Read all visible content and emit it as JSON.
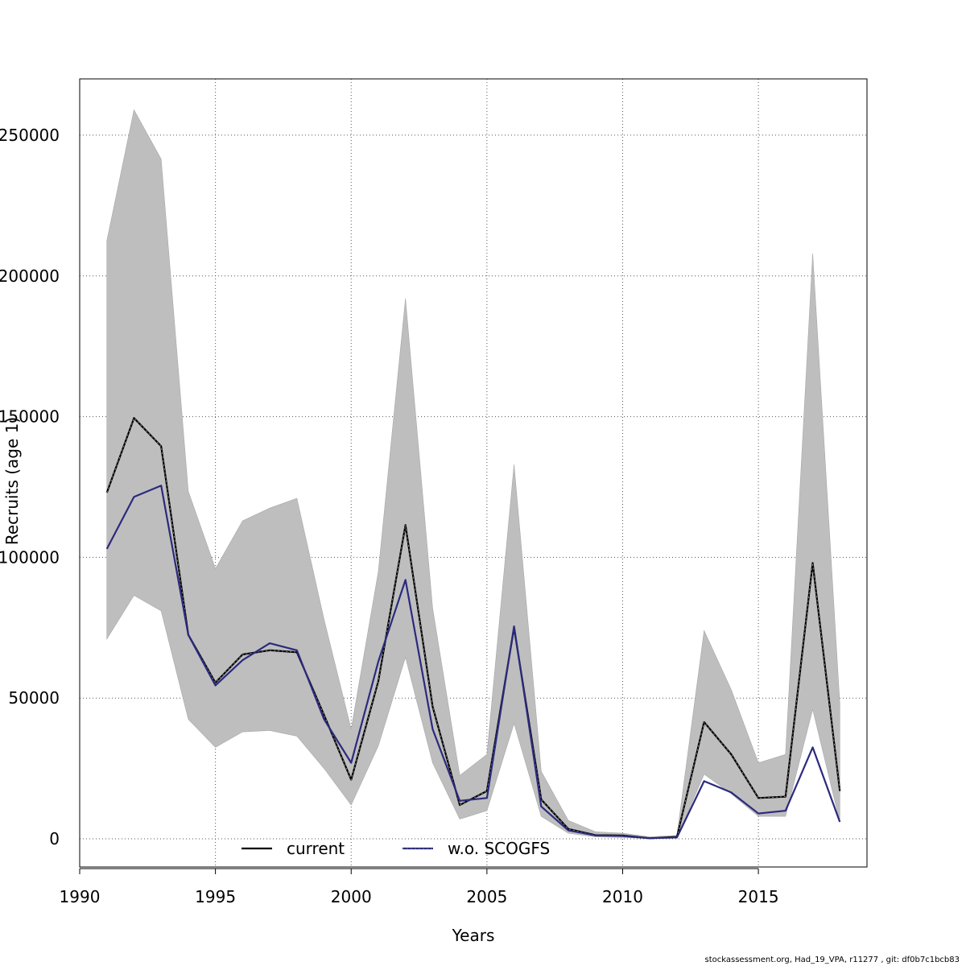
{
  "chart_data": {
    "type": "line",
    "title": "",
    "xlabel": "Years",
    "ylabel": "Recruits (age 1)",
    "xlim": [
      1990,
      2019
    ],
    "ylim": [
      -10000,
      270000
    ],
    "xticks": [
      1990,
      1995,
      2000,
      2005,
      2010,
      2015
    ],
    "yticks": [
      0,
      50000,
      100000,
      150000,
      200000,
      250000
    ],
    "grid": true,
    "legend_position": "bottom",
    "x": [
      1991,
      1992,
      1993,
      1994,
      1995,
      1996,
      1997,
      1998,
      1999,
      2000,
      2001,
      2002,
      2003,
      2004,
      2005,
      2006,
      2007,
      2008,
      2009,
      2010,
      2011,
      2012,
      2013,
      2014,
      2015,
      2016,
      2017,
      2018
    ],
    "series": [
      {
        "name": "current",
        "color": "#000000",
        "style": "solid",
        "values": [
          123000,
          149500,
          139500,
          72500,
          55500,
          65500,
          67000,
          66300,
          44000,
          21000,
          56000,
          111500,
          47000,
          12000,
          17000,
          75000,
          14000,
          3500,
          1300,
          1200,
          200,
          700,
          41500,
          30000,
          14500,
          15000,
          98000,
          17000
        ]
      },
      {
        "name": "w.o. SCOGFS",
        "color": "#2b2a7e",
        "style": "solid",
        "values": [
          103000,
          121500,
          125500,
          72500,
          54500,
          63500,
          69500,
          67000,
          42500,
          27000,
          63000,
          92000,
          39000,
          13500,
          14500,
          75500,
          11500,
          3000,
          1200,
          1000,
          200,
          500,
          20500,
          16500,
          9000,
          10000,
          32500,
          6000
        ]
      }
    ],
    "band": {
      "color": "#bebebe",
      "upper": [
        212500,
        259000,
        241500,
        123500,
        96000,
        113000,
        117500,
        121000,
        78000,
        39000,
        95000,
        192000,
        82000,
        22500,
        30000,
        133000,
        24000,
        6500,
        2500,
        2000,
        700,
        1200,
        74000,
        53000,
        27000,
        30000,
        208000,
        48000
      ],
      "lower": [
        71000,
        86500,
        81000,
        42500,
        32500,
        38000,
        38500,
        36500,
        25000,
        12000,
        33000,
        64500,
        27000,
        7000,
        10000,
        41000,
        8000,
        2000,
        700,
        500,
        100,
        200,
        23000,
        16000,
        8000,
        8000,
        46000,
        6000
      ]
    },
    "footer": "stockassessment.org, Had_19_VPA, r11277 , git: df0b7c1bcb83"
  }
}
